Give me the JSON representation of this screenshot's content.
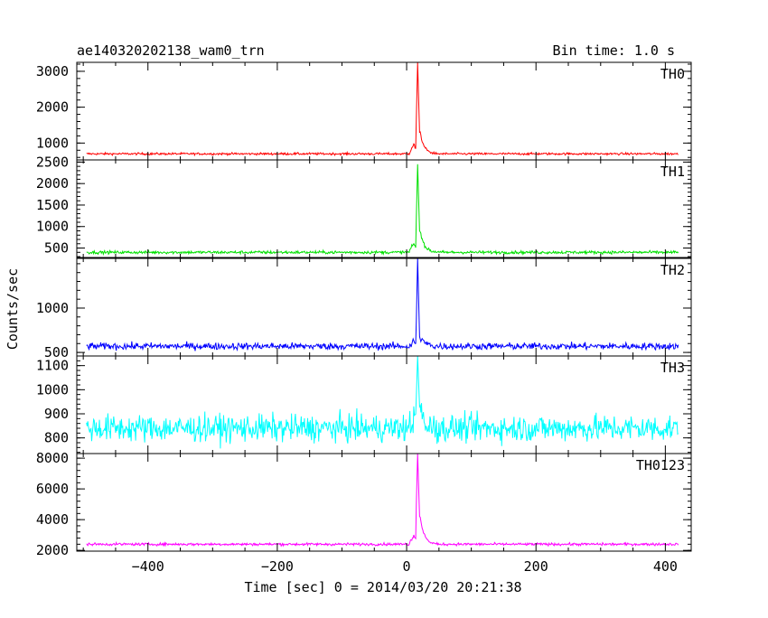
{
  "header": {
    "title": "ae140320202138_wam0_trn",
    "bin_time": "Bin time: 1.0 s"
  },
  "chart_data": {
    "type": "line",
    "title": "ae140320202138_wam0_trn",
    "subtitle": "Bin time: 1.0 s",
    "xlabel": "Time [sec] 0 = 2014/03/20 20:21:38",
    "ylabel": "Counts/sec",
    "xlim": [
      -510,
      440
    ],
    "xticks": [
      -400,
      -200,
      0,
      200,
      400
    ],
    "x_start": -495,
    "x_end": 420,
    "peak_time": 17,
    "grid": false,
    "panels": [
      {
        "name": "TH0",
        "color": "#ff0000",
        "ylim": [
          530,
          3250
        ],
        "yticks": [
          1000,
          2000,
          3000
        ],
        "baseline": 700,
        "noise": 22,
        "peak": 3250,
        "precursor": 950,
        "shoulder": 1300
      },
      {
        "name": "TH1",
        "color": "#00e000",
        "ylim": [
          280,
          2550
        ],
        "yticks": [
          500,
          1000,
          1500,
          2000,
          2500
        ],
        "baseline": 400,
        "noise": 25,
        "peak": 2450,
        "precursor": 600,
        "shoulder": 900
      },
      {
        "name": "TH2",
        "color": "#0000ff",
        "ylim": [
          460,
          1560
        ],
        "yticks": [
          500,
          1000
        ],
        "baseline": 570,
        "noise": 28,
        "peak": 1560,
        "precursor": 620,
        "shoulder": 680
      },
      {
        "name": "TH3",
        "color": "#00ffff",
        "ylim": [
          735,
          1140
        ],
        "yticks": [
          800,
          900,
          1000,
          1100
        ],
        "baseline": 840,
        "noise": 40,
        "peak": 1140,
        "precursor": 880,
        "shoulder": 930
      },
      {
        "name": "TH0123",
        "color": "#ff00ff",
        "ylim": [
          1950,
          8300
        ],
        "yticks": [
          2000,
          4000,
          6000,
          8000
        ],
        "baseline": 2400,
        "noise": 60,
        "peak": 8300,
        "precursor": 3000,
        "shoulder": 4200
      }
    ]
  }
}
